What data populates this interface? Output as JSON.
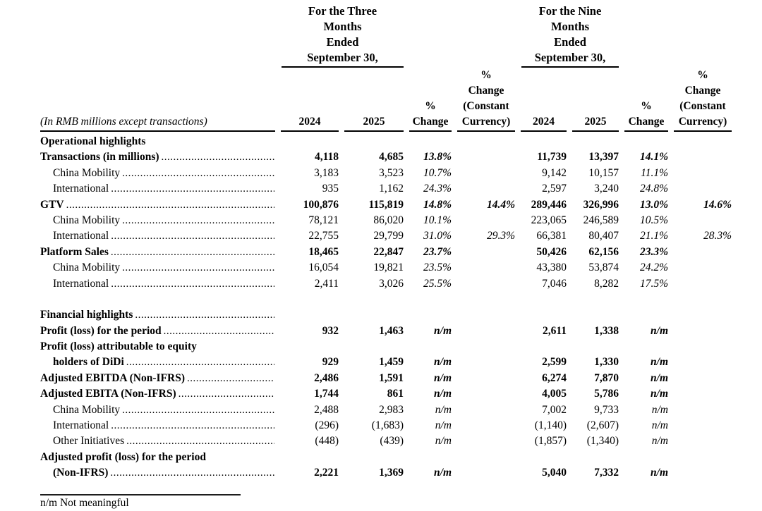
{
  "page": {
    "background": "#ffffff",
    "text_color": "#000000",
    "rule_color": "#1d1d1d"
  },
  "header": {
    "unit_label": "(In RMB millions except transactions)",
    "groups": [
      {
        "title_lines": [
          "For the Three",
          "Months",
          "Ended",
          "September 30,"
        ]
      },
      {
        "title_lines": [
          "For the Nine",
          "Months",
          "Ended",
          "September 30,"
        ]
      }
    ],
    "columns": [
      {
        "lines": [
          "2024"
        ]
      },
      {
        "lines": [
          "2025"
        ]
      },
      {
        "lines": [
          "%",
          "Change"
        ]
      },
      {
        "lines": [
          "%",
          "Change",
          "(Constant",
          "Currency)"
        ]
      },
      {
        "lines": [
          "2024"
        ]
      },
      {
        "lines": [
          "2025"
        ]
      },
      {
        "lines": [
          "%",
          "Change"
        ]
      },
      {
        "lines": [
          "%",
          "Change",
          "(Constant",
          "Currency)"
        ]
      }
    ]
  },
  "rows": [
    {
      "label": "Operational highlights",
      "bold": true,
      "indent": 0,
      "dots": false,
      "values": [
        "",
        "",
        "",
        "",
        "",
        "",
        "",
        ""
      ]
    },
    {
      "label": "Transactions (in millions)",
      "bold": true,
      "indent": 0,
      "dots": true,
      "values": [
        "4,118",
        "4,685",
        "13.8%",
        "",
        "11,739",
        "13,397",
        "14.1%",
        ""
      ]
    },
    {
      "label": "China Mobility",
      "bold": false,
      "indent": 1,
      "dots": true,
      "values": [
        "3,183",
        "3,523",
        "10.7%",
        "",
        "9,142",
        "10,157",
        "11.1%",
        ""
      ]
    },
    {
      "label": "International",
      "bold": false,
      "indent": 1,
      "dots": true,
      "values": [
        "935",
        "1,162",
        "24.3%",
        "",
        "2,597",
        "3,240",
        "24.8%",
        ""
      ]
    },
    {
      "label": "GTV",
      "bold": true,
      "indent": 0,
      "dots": true,
      "values": [
        "100,876",
        "115,819",
        "14.8%",
        "14.4%",
        "289,446",
        "326,996",
        "13.0%",
        "14.6%"
      ]
    },
    {
      "label": "China Mobility",
      "bold": false,
      "indent": 1,
      "dots": true,
      "values": [
        "78,121",
        "86,020",
        "10.1%",
        "",
        "223,065",
        "246,589",
        "10.5%",
        ""
      ]
    },
    {
      "label": "International",
      "bold": false,
      "indent": 1,
      "dots": true,
      "values": [
        "22,755",
        "29,799",
        "31.0%",
        "29.3%",
        "66,381",
        "80,407",
        "21.1%",
        "28.3%"
      ]
    },
    {
      "label": "Platform Sales",
      "bold": true,
      "indent": 0,
      "dots": true,
      "values": [
        "18,465",
        "22,847",
        "23.7%",
        "",
        "50,426",
        "62,156",
        "23.3%",
        ""
      ]
    },
    {
      "label": "China Mobility",
      "bold": false,
      "indent": 1,
      "dots": true,
      "values": [
        "16,054",
        "19,821",
        "23.5%",
        "",
        "43,380",
        "53,874",
        "24.2%",
        ""
      ]
    },
    {
      "label": "International",
      "bold": false,
      "indent": 1,
      "dots": true,
      "values": [
        "2,411",
        "3,026",
        "25.5%",
        "",
        "7,046",
        "8,282",
        "17.5%",
        ""
      ]
    },
    {
      "spacer": true
    },
    {
      "label": "Financial highlights",
      "bold": true,
      "indent": 0,
      "dots": true,
      "values": [
        "",
        "",
        "",
        "",
        "",
        "",
        "",
        ""
      ]
    },
    {
      "label": "Profit (loss) for the period",
      "bold": true,
      "indent": 0,
      "dots": true,
      "values": [
        "932",
        "1,463",
        "n/m",
        "",
        "2,611",
        "1,338",
        "n/m",
        ""
      ]
    },
    {
      "label": "Profit (loss) attributable to equity",
      "bold": true,
      "indent": 0,
      "dots": false,
      "values": [
        "",
        "",
        "",
        "",
        "",
        "",
        "",
        ""
      ]
    },
    {
      "label": "holders of DiDi",
      "bold": true,
      "indent": 1,
      "dots": true,
      "values": [
        "929",
        "1,459",
        "n/m",
        "",
        "2,599",
        "1,330",
        "n/m",
        ""
      ]
    },
    {
      "label": "Adjusted EBITDA (Non-IFRS)",
      "bold": true,
      "indent": 0,
      "dots": true,
      "values": [
        "2,486",
        "1,591",
        "n/m",
        "",
        "6,274",
        "7,870",
        "n/m",
        ""
      ]
    },
    {
      "label": "Adjusted EBITA (Non-IFRS)",
      "bold": true,
      "indent": 0,
      "dots": true,
      "values": [
        "1,744",
        "861",
        "n/m",
        "",
        "4,005",
        "5,786",
        "n/m",
        ""
      ]
    },
    {
      "label": "China Mobility",
      "bold": false,
      "indent": 1,
      "dots": true,
      "values": [
        "2,488",
        "2,983",
        "n/m",
        "",
        "7,002",
        "9,733",
        "n/m",
        ""
      ]
    },
    {
      "label": "International",
      "bold": false,
      "indent": 1,
      "dots": true,
      "values": [
        "(296)",
        "(1,683)",
        "n/m",
        "",
        "(1,140)",
        "(2,607)",
        "n/m",
        ""
      ]
    },
    {
      "label": "Other Initiatives",
      "bold": false,
      "indent": 1,
      "dots": true,
      "values": [
        "(448)",
        "(439)",
        "n/m",
        "",
        "(1,857)",
        "(1,340)",
        "n/m",
        ""
      ]
    },
    {
      "label": "Adjusted profit (loss) for the period",
      "bold": true,
      "indent": 0,
      "dots": false,
      "values": [
        "",
        "",
        "",
        "",
        "",
        "",
        "",
        ""
      ]
    },
    {
      "label": "(Non-IFRS)",
      "bold": true,
      "indent": 1,
      "dots": true,
      "values": [
        "2,221",
        "1,369",
        "n/m",
        "",
        "5,040",
        "7,332",
        "n/m",
        ""
      ]
    }
  ],
  "footnote": "n/m Not meaningful"
}
